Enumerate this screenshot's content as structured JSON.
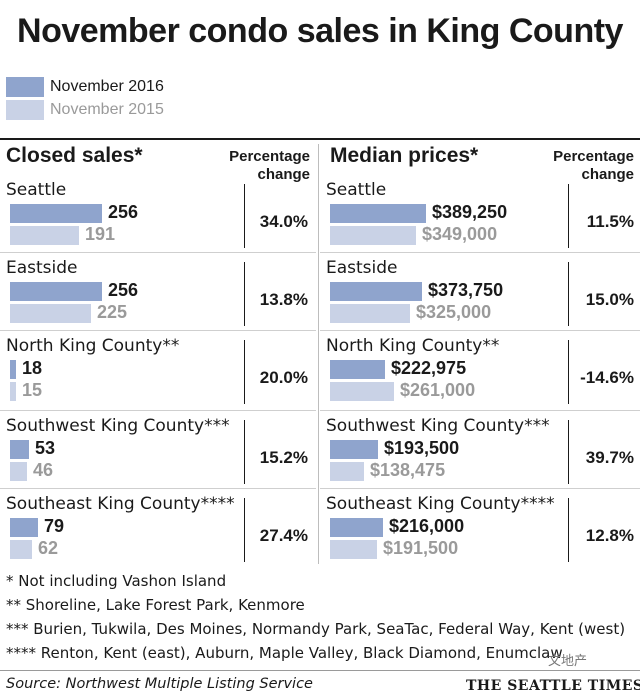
{
  "title": "November condo sales in King County",
  "legend": [
    {
      "label": "November 2016",
      "color": "#8fa4cd"
    },
    {
      "label": "November 2015",
      "color": "#c9d2e6"
    }
  ],
  "colors": {
    "bar_2016": "#8fa4cd",
    "bar_2015": "#c9d2e6",
    "text_2015": "#9a9a9a"
  },
  "chart_data": [
    {
      "type": "bar",
      "title": "Closed sales*",
      "change_header": "Percentage change",
      "categories": [
        "Seattle",
        "Eastside",
        "North King County**",
        "Southwest King County***",
        "Southeast King County****"
      ],
      "series": [
        {
          "name": "November 2016",
          "values": [
            256,
            256,
            18,
            53,
            79
          ],
          "labels": [
            "256",
            "256",
            "18",
            "53",
            "79"
          ]
        },
        {
          "name": "November 2015",
          "values": [
            191,
            225,
            15,
            46,
            62
          ],
          "labels": [
            "191",
            "225",
            "15",
            "46",
            "62"
          ]
        }
      ],
      "changes": [
        "34.0%",
        "13.8%",
        "20.0%",
        "15.2%",
        "27.4%"
      ]
    },
    {
      "type": "bar",
      "title": "Median prices*",
      "change_header": "Percentage change",
      "categories": [
        "Seattle",
        "Eastside",
        "North King County**",
        "Southwest King County***",
        "Southeast King County****"
      ],
      "series": [
        {
          "name": "November 2016",
          "values": [
            389250,
            373750,
            222975,
            193500,
            216000
          ],
          "labels": [
            "$389,250",
            "$373,750",
            "$222,975",
            "$193,500",
            "$216,000"
          ]
        },
        {
          "name": "November 2015",
          "values": [
            349000,
            325000,
            261000,
            138475,
            191500
          ],
          "labels": [
            "$349,000",
            "$325,000",
            "$261,000",
            "$138,475",
            "$191,500"
          ]
        }
      ],
      "changes": [
        "11.5%",
        "15.0%",
        "-14.6%",
        "39.7%",
        "12.8%"
      ]
    }
  ],
  "footnotes": [
    "* Not including Vashon Island",
    "** Shoreline, Lake Forest Park, Kenmore",
    "*** Burien, Tukwila, Des Moines, Normandy Park, SeaTac, Federal Way, Kent (west)",
    "**** Renton, Kent (east), Auburn, Maple Valley, Black Diamond, Enumclaw"
  ],
  "source": "Source: Northwest Multiple Listing Service",
  "brand": "THE SEATTLE TIMES",
  "watermark": "文地产"
}
